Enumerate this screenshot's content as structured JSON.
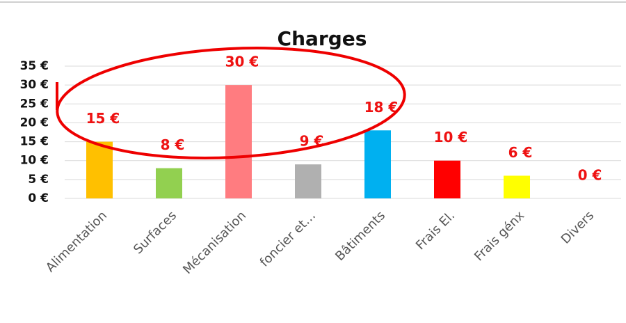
{
  "chart_data": {
    "type": "bar",
    "title": "Charges",
    "categories": [
      "Alimentation",
      "Surfaces",
      "Mécanisation",
      "foncier et…",
      "Bâtiments",
      "Frais El.",
      "Frais génx",
      "Divers"
    ],
    "values": [
      15,
      8,
      30,
      9,
      18,
      10,
      6,
      0
    ],
    "value_labels": [
      "15 €",
      "8 €",
      "30 €",
      "9 €",
      "18 €",
      "10 €",
      "6 €",
      "0 €"
    ],
    "colors": [
      "#ffc000",
      "#92d050",
      "#ff7c80",
      "#b0b0b0",
      "#00b0f0",
      "#ff0000",
      "#ffff00",
      "#7f7f7f"
    ],
    "ylim": [
      0,
      35
    ],
    "yticks": [
      {
        "value": 0,
        "label": "0 €"
      },
      {
        "value": 5,
        "label": "5 €"
      },
      {
        "value": 10,
        "label": "10 €"
      },
      {
        "value": 15,
        "label": "15 €"
      },
      {
        "value": 20,
        "label": "20 €"
      },
      {
        "value": 25,
        "label": "25 €"
      },
      {
        "value": 30,
        "label": "30 €"
      },
      {
        "value": 35,
        "label": "35 €"
      }
    ],
    "grid": true
  }
}
